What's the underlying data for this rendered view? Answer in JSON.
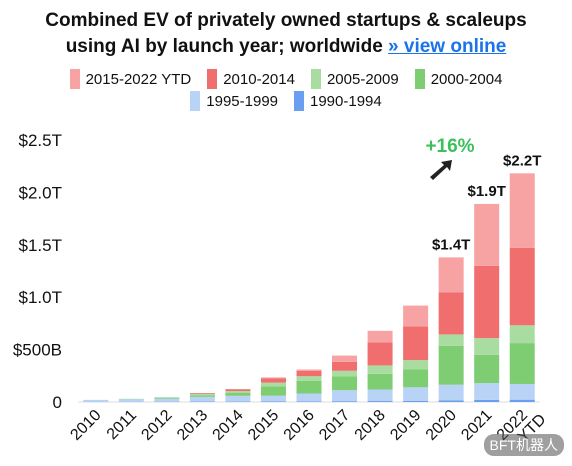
{
  "title": {
    "line1": "Combined EV of privately owned startups & scaleups",
    "line2": "using AI by launch year; worldwide",
    "link_text": "» view online"
  },
  "legend": {
    "row1": [
      {
        "label": "2015-2022 YTD",
        "color": "#f7a3a3"
      },
      {
        "label": "2010-2014",
        "color": "#f06e6e"
      },
      {
        "label": "2005-2009",
        "color": "#a9dca0"
      },
      {
        "label": "2000-2004",
        "color": "#7fcd73"
      }
    ],
    "row2": [
      {
        "label": "1995-1999",
        "color": "#b9d3f7"
      },
      {
        "label": "1990-1994",
        "color": "#6a9ef0"
      }
    ]
  },
  "growth_label": "+16%",
  "growth_color": "#3dbf5e",
  "watermark": "BFT机器人",
  "chart_data": {
    "type": "bar",
    "stacked": true,
    "categories": [
      "2010",
      "2011",
      "2012",
      "2013",
      "2014",
      "2015",
      "2016",
      "2017",
      "2018",
      "2019",
      "2020",
      "2021",
      "2022 YTD"
    ],
    "y_tick_labels": [
      "0",
      "$500B",
      "$1.0T",
      "$1.5T",
      "$2.0T",
      "$2.5T"
    ],
    "y_ticks": [
      0,
      500,
      1000,
      1500,
      2000,
      2500
    ],
    "ylim": [
      0,
      2500
    ],
    "y_unit": "billions USD",
    "series": [
      {
        "name": "1990-1994",
        "color": "#6a9ef0",
        "values": [
          2,
          2,
          3,
          4,
          4,
          5,
          6,
          8,
          9,
          10,
          15,
          20,
          22
        ]
      },
      {
        "name": "1995-1999",
        "color": "#b9d3f7",
        "values": [
          18,
          25,
          30,
          45,
          55,
          55,
          75,
          105,
          110,
          130,
          150,
          160,
          150
        ]
      },
      {
        "name": "2000-2004",
        "color": "#7fcd73",
        "values": [
          0,
          3,
          8,
          15,
          30,
          90,
          120,
          130,
          150,
          170,
          370,
          270,
          390
        ]
      },
      {
        "name": "2005-2009",
        "color": "#a9dca0",
        "values": [
          0,
          0,
          5,
          12,
          15,
          35,
          45,
          55,
          80,
          90,
          110,
          160,
          170
        ]
      },
      {
        "name": "2010-2014",
        "color": "#f06e6e",
        "values": [
          0,
          0,
          0,
          8,
          18,
          40,
          50,
          85,
          220,
          320,
          400,
          690,
          740
        ]
      },
      {
        "name": "2015-2022 YTD",
        "color": "#f7a3a3",
        "values": [
          0,
          0,
          0,
          0,
          0,
          10,
          14,
          60,
          110,
          200,
          335,
          590,
          710
        ]
      }
    ],
    "bar_labels": [
      {
        "category": "2020",
        "text": "$1.4T"
      },
      {
        "category": "2021",
        "text": "$1.9T"
      },
      {
        "category": "2022 YTD",
        "text": "$2.2T"
      }
    ]
  }
}
